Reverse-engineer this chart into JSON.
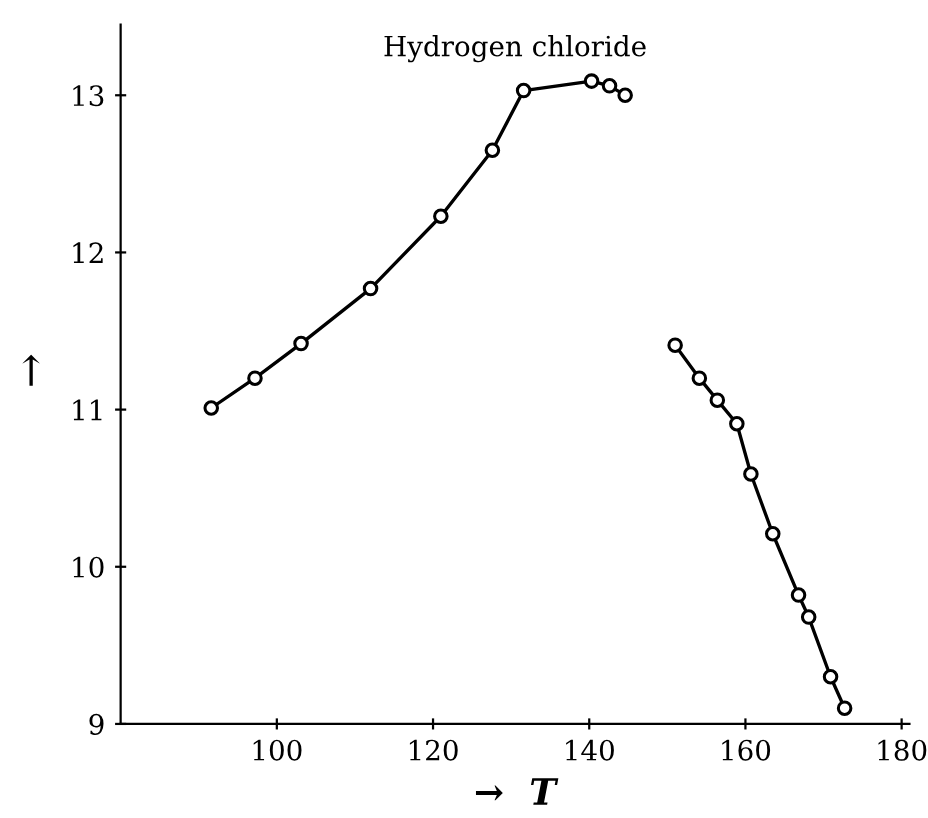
{
  "chart_data": {
    "type": "line",
    "title": "Hydrogen chloride",
    "xlabel": "→  T",
    "ylabel": "↑",
    "series": [
      {
        "color": "#000000",
        "x": [
          91.6,
          97.2,
          103.1,
          112.0,
          121.0,
          127.6,
          131.6,
          140.3,
          142.6,
          144.6
        ],
        "values": [
          11.01,
          11.2,
          11.42,
          11.77,
          12.23,
          12.65,
          13.03,
          13.09,
          13.06,
          13.0
        ]
      },
      {
        "color": "#000000",
        "x": [
          151.0,
          154.1,
          156.4,
          158.9,
          160.7,
          163.5,
          166.8,
          168.1,
          170.9,
          172.7
        ],
        "values": [
          11.41,
          11.2,
          11.06,
          10.91,
          10.59,
          10.21,
          9.82,
          9.68,
          9.3,
          9.1
        ]
      }
    ],
    "xlim": [
      80,
      181
    ],
    "ylim": [
      9,
      13.45
    ],
    "xticks": [
      100,
      120,
      140,
      160,
      180
    ],
    "yticks": [
      9,
      10,
      11,
      12,
      13
    ],
    "grid": false,
    "legend": false,
    "marker": "circle",
    "line_style": "solid"
  }
}
